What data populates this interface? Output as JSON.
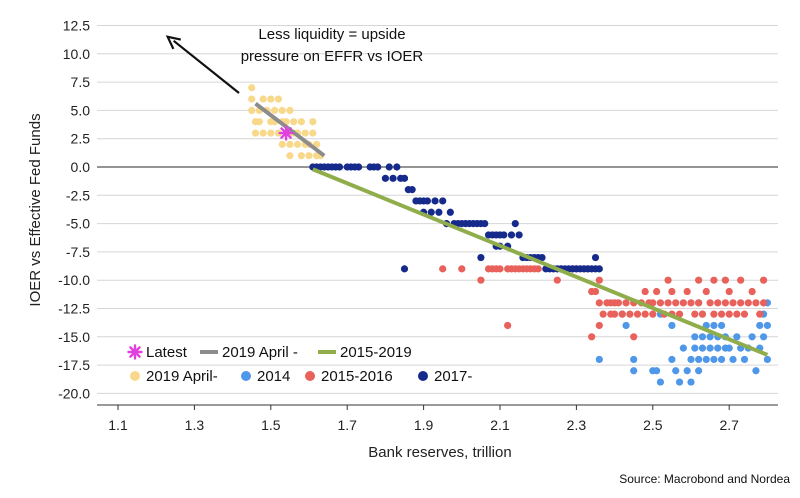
{
  "chart_data": {
    "type": "scatter",
    "xlabel": "Bank reserves, trillion",
    "ylabel": "IOER vs Effective Fed Funds",
    "xlim": [
      1.02,
      2.86
    ],
    "ylim": [
      -21,
      14
    ],
    "xticks": [
      1.1,
      1.3,
      1.5,
      1.7,
      1.9,
      2.1,
      2.3,
      2.5,
      2.7
    ],
    "xtick_labels": [
      "1.1",
      "1.3",
      "1.5",
      "1.7",
      "1.9",
      "2.1",
      "2.3",
      "2.5",
      "2.7"
    ],
    "yticks": [
      12.5,
      10,
      7.5,
      5,
      2.5,
      0,
      -2.5,
      -5,
      -7.5,
      -10,
      -12.5,
      -15,
      -17.5,
      -20
    ],
    "ytick_labels": [
      "12.5",
      "10.0",
      "7.5",
      "5.0",
      "2.5",
      "0.0",
      "-2.5",
      "-5.0",
      "-7.5",
      "-10.0",
      "-12.5",
      "-15.0",
      "-17.5",
      "-20.0"
    ],
    "grid": "horizontal",
    "annotation": {
      "lines": [
        "Less liquidity = upside",
        "pressure on EFFR vs IOER"
      ],
      "arrow_from": [
        1.55,
        3.0
      ],
      "arrow_to": [
        1.23,
        11.5
      ]
    },
    "source": "Source: Macrobond and Nordea",
    "legend_position": "bottom-left",
    "legend": [
      {
        "label": "Latest",
        "kind": "star",
        "color": "#e040e0"
      },
      {
        "label": "2019 April -",
        "kind": "line",
        "color": "#8c8c8c"
      },
      {
        "label": "2015-2019",
        "kind": "line",
        "color": "#8fad4b"
      },
      {
        "label": "2019 April-",
        "kind": "dot",
        "color": "#f8d98b"
      },
      {
        "label": "2014",
        "kind": "dot",
        "color": "#4f97e8"
      },
      {
        "label": "2015-2016",
        "kind": "dot",
        "color": "#e8615a"
      },
      {
        "label": "2017-",
        "kind": "dot",
        "color": "#162a8c"
      }
    ],
    "series": [
      {
        "name": "2019 April-",
        "kind": "scatter",
        "color": "#f8d98b",
        "points": [
          [
            1.45,
            7
          ],
          [
            1.45,
            6
          ],
          [
            1.45,
            5
          ],
          [
            1.46,
            4
          ],
          [
            1.47,
            4
          ],
          [
            1.47,
            5
          ],
          [
            1.48,
            3
          ],
          [
            1.48,
            6
          ],
          [
            1.49,
            5
          ],
          [
            1.5,
            4
          ],
          [
            1.5,
            3
          ],
          [
            1.5,
            6
          ],
          [
            1.51,
            5
          ],
          [
            1.51,
            4
          ],
          [
            1.52,
            3
          ],
          [
            1.52,
            6
          ],
          [
            1.53,
            5
          ],
          [
            1.53,
            4
          ],
          [
            1.54,
            4
          ],
          [
            1.55,
            3
          ],
          [
            1.55,
            5
          ],
          [
            1.55,
            2
          ],
          [
            1.56,
            4
          ],
          [
            1.56,
            3
          ],
          [
            1.57,
            3
          ],
          [
            1.57,
            2
          ],
          [
            1.58,
            4
          ],
          [
            1.58,
            1
          ],
          [
            1.59,
            3
          ],
          [
            1.59,
            2
          ],
          [
            1.6,
            2
          ],
          [
            1.6,
            1
          ],
          [
            1.61,
            3
          ],
          [
            1.61,
            4
          ],
          [
            1.62,
            2
          ],
          [
            1.62,
            1
          ],
          [
            1.63,
            1
          ],
          [
            1.55,
            1
          ],
          [
            1.53,
            2
          ],
          [
            1.46,
            3
          ]
        ]
      },
      {
        "name": "2014",
        "kind": "scatter",
        "color": "#4f97e8",
        "points": [
          [
            2.36,
            -17
          ],
          [
            2.45,
            -17
          ],
          [
            2.45,
            -18
          ],
          [
            2.5,
            -18
          ],
          [
            2.51,
            -18
          ],
          [
            2.52,
            -19
          ],
          [
            2.55,
            -17
          ],
          [
            2.56,
            -18
          ],
          [
            2.57,
            -19
          ],
          [
            2.58,
            -16
          ],
          [
            2.59,
            -18
          ],
          [
            2.6,
            -19
          ],
          [
            2.6,
            -17
          ],
          [
            2.61,
            -16
          ],
          [
            2.61,
            -15
          ],
          [
            2.62,
            -18
          ],
          [
            2.62,
            -17
          ],
          [
            2.63,
            -15
          ],
          [
            2.63,
            -16
          ],
          [
            2.64,
            -14
          ],
          [
            2.64,
            -17
          ],
          [
            2.65,
            -16
          ],
          [
            2.65,
            -15
          ],
          [
            2.66,
            -14
          ],
          [
            2.66,
            -17
          ],
          [
            2.67,
            -16
          ],
          [
            2.67,
            -15
          ],
          [
            2.68,
            -17
          ],
          [
            2.68,
            -14
          ],
          [
            2.69,
            -15
          ],
          [
            2.69,
            -16
          ],
          [
            2.7,
            -16
          ],
          [
            2.71,
            -17
          ],
          [
            2.72,
            -15
          ],
          [
            2.73,
            -16
          ],
          [
            2.74,
            -17
          ],
          [
            2.75,
            -16
          ],
          [
            2.76,
            -15
          ],
          [
            2.77,
            -18
          ],
          [
            2.78,
            -16
          ],
          [
            2.78,
            -14
          ],
          [
            2.79,
            -15
          ],
          [
            2.79,
            -13
          ],
          [
            2.8,
            -14
          ],
          [
            2.8,
            -17
          ],
          [
            2.8,
            -12
          ],
          [
            2.62,
            -12
          ],
          [
            2.63,
            -13
          ],
          [
            2.55,
            -14
          ],
          [
            2.52,
            -13
          ],
          [
            2.42,
            -13
          ],
          [
            2.43,
            -14
          ]
        ]
      },
      {
        "name": "2015-2016",
        "kind": "scatter",
        "color": "#e8615a",
        "points": [
          [
            1.95,
            -9
          ],
          [
            2.0,
            -9
          ],
          [
            2.05,
            -10
          ],
          [
            2.07,
            -9
          ],
          [
            2.08,
            -9
          ],
          [
            2.09,
            -9
          ],
          [
            2.1,
            -9
          ],
          [
            2.12,
            -9
          ],
          [
            2.13,
            -9
          ],
          [
            2.14,
            -9
          ],
          [
            2.15,
            -9
          ],
          [
            2.16,
            -9
          ],
          [
            2.17,
            -9
          ],
          [
            2.18,
            -9
          ],
          [
            2.19,
            -9
          ],
          [
            2.2,
            -9
          ],
          [
            2.12,
            -14
          ],
          [
            2.25,
            -10
          ],
          [
            2.26,
            -9
          ],
          [
            2.29,
            -9
          ],
          [
            2.3,
            -9
          ],
          [
            2.32,
            -9
          ],
          [
            2.33,
            -9
          ],
          [
            2.34,
            -11
          ],
          [
            2.35,
            -11
          ],
          [
            2.36,
            -10
          ],
          [
            2.36,
            -12
          ],
          [
            2.36,
            -14
          ],
          [
            2.37,
            -13
          ],
          [
            2.38,
            -12
          ],
          [
            2.39,
            -13
          ],
          [
            2.39,
            -12
          ],
          [
            2.4,
            -13
          ],
          [
            2.4,
            -12
          ],
          [
            2.41,
            -12
          ],
          [
            2.42,
            -13
          ],
          [
            2.43,
            -12
          ],
          [
            2.44,
            -13
          ],
          [
            2.45,
            -12
          ],
          [
            2.46,
            -13
          ],
          [
            2.47,
            -12
          ],
          [
            2.48,
            -13
          ],
          [
            2.49,
            -12
          ],
          [
            2.5,
            -13
          ],
          [
            2.5,
            -12
          ],
          [
            2.51,
            -11
          ],
          [
            2.52,
            -12
          ],
          [
            2.53,
            -13
          ],
          [
            2.54,
            -12
          ],
          [
            2.55,
            -13
          ],
          [
            2.55,
            -11
          ],
          [
            2.56,
            -12
          ],
          [
            2.57,
            -13
          ],
          [
            2.58,
            -12
          ],
          [
            2.59,
            -11
          ],
          [
            2.6,
            -12
          ],
          [
            2.61,
            -13
          ],
          [
            2.62,
            -12
          ],
          [
            2.63,
            -13
          ],
          [
            2.64,
            -11
          ],
          [
            2.65,
            -12
          ],
          [
            2.66,
            -13
          ],
          [
            2.67,
            -12
          ],
          [
            2.68,
            -13
          ],
          [
            2.69,
            -12
          ],
          [
            2.7,
            -11
          ],
          [
            2.7,
            -13
          ],
          [
            2.71,
            -12
          ],
          [
            2.72,
            -13
          ],
          [
            2.73,
            -12
          ],
          [
            2.74,
            -13
          ],
          [
            2.75,
            -12
          ],
          [
            2.76,
            -11
          ],
          [
            2.77,
            -12
          ],
          [
            2.78,
            -13
          ],
          [
            2.79,
            -12
          ],
          [
            2.54,
            -10
          ],
          [
            2.62,
            -10
          ],
          [
            2.69,
            -10
          ],
          [
            2.73,
            -10
          ],
          [
            2.79,
            -10
          ],
          [
            2.48,
            -11
          ],
          [
            2.34,
            -15
          ],
          [
            2.45,
            -15
          ],
          [
            2.66,
            -10
          ]
        ]
      },
      {
        "name": "2017-",
        "kind": "scatter",
        "color": "#162a8c",
        "points": [
          [
            1.61,
            0
          ],
          [
            1.62,
            0
          ],
          [
            1.63,
            0
          ],
          [
            1.64,
            0
          ],
          [
            1.65,
            0
          ],
          [
            1.66,
            0
          ],
          [
            1.67,
            0
          ],
          [
            1.68,
            0
          ],
          [
            1.7,
            0
          ],
          [
            1.71,
            0
          ],
          [
            1.72,
            0
          ],
          [
            1.73,
            0
          ],
          [
            1.76,
            0
          ],
          [
            1.77,
            0
          ],
          [
            1.78,
            0
          ],
          [
            1.8,
            -1
          ],
          [
            1.81,
            0
          ],
          [
            1.82,
            -1
          ],
          [
            1.83,
            0
          ],
          [
            1.84,
            -1
          ],
          [
            1.85,
            -1
          ],
          [
            1.86,
            -2
          ],
          [
            1.87,
            -2
          ],
          [
            1.88,
            -3
          ],
          [
            1.89,
            -3
          ],
          [
            1.9,
            -3
          ],
          [
            1.9,
            -4
          ],
          [
            1.91,
            -3
          ],
          [
            1.92,
            -4
          ],
          [
            1.93,
            -3
          ],
          [
            1.94,
            -4
          ],
          [
            1.95,
            -3
          ],
          [
            1.96,
            -5
          ],
          [
            1.97,
            -4
          ],
          [
            1.98,
            -5
          ],
          [
            1.99,
            -5
          ],
          [
            2.0,
            -5
          ],
          [
            2.01,
            -5
          ],
          [
            2.02,
            -5
          ],
          [
            2.03,
            -5
          ],
          [
            2.04,
            -5
          ],
          [
            2.05,
            -5
          ],
          [
            2.06,
            -5
          ],
          [
            2.07,
            -6
          ],
          [
            2.08,
            -6
          ],
          [
            2.09,
            -6
          ],
          [
            2.1,
            -6
          ],
          [
            2.11,
            -6
          ],
          [
            2.12,
            -7
          ],
          [
            2.13,
            -6
          ],
          [
            2.14,
            -5
          ],
          [
            2.15,
            -6
          ],
          [
            2.16,
            -8
          ],
          [
            2.17,
            -8
          ],
          [
            2.18,
            -8
          ],
          [
            2.19,
            -8
          ],
          [
            2.2,
            -8
          ],
          [
            2.21,
            -8
          ],
          [
            2.22,
            -9
          ],
          [
            2.23,
            -9
          ],
          [
            2.24,
            -9
          ],
          [
            2.25,
            -9
          ],
          [
            2.26,
            -9
          ],
          [
            2.27,
            -9
          ],
          [
            2.28,
            -9
          ],
          [
            2.29,
            -9
          ],
          [
            2.3,
            -9
          ],
          [
            2.31,
            -9
          ],
          [
            2.32,
            -9
          ],
          [
            2.33,
            -9
          ],
          [
            2.34,
            -9
          ],
          [
            2.35,
            -9
          ],
          [
            2.36,
            -9
          ],
          [
            2.35,
            -8
          ],
          [
            1.85,
            -9
          ],
          [
            2.05,
            -8
          ],
          [
            2.09,
            -7
          ],
          [
            2.1,
            -7
          ]
        ]
      },
      {
        "name": "2019 April -",
        "kind": "line",
        "color": "#8c8c8c",
        "points": [
          [
            1.46,
            5.6
          ],
          [
            1.64,
            1.0
          ]
        ]
      },
      {
        "name": "2015-2019",
        "kind": "line",
        "color": "#8fad4b",
        "points": [
          [
            1.61,
            -0.2
          ],
          [
            2.8,
            -16.6
          ]
        ]
      },
      {
        "name": "Latest",
        "kind": "star",
        "color": "#e040e0",
        "points": [
          [
            1.54,
            3.0
          ]
        ]
      }
    ]
  }
}
